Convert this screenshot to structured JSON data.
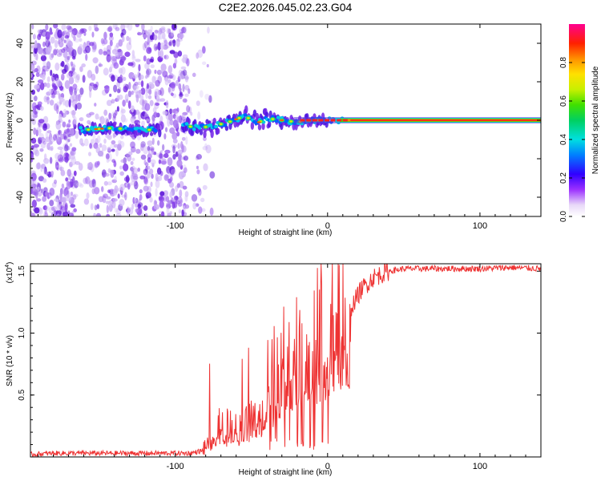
{
  "figure_title": "C2E2.2026.045.02.23.G04",
  "chart_data": [
    {
      "type": "heatmap",
      "title": "C2E2.2026.045.02.23.G04",
      "xlabel": "Height of straight line (km)",
      "ylabel": "Frequency (Hz)",
      "xlim": [
        -195,
        140
      ],
      "ylim": [
        -50,
        50
      ],
      "xticks": [
        -100,
        0,
        100
      ],
      "xtick_labels": [
        "-100",
        "0",
        "100"
      ],
      "yticks": [
        -40,
        -20,
        0,
        20,
        40
      ],
      "ytick_labels": [
        "-40",
        "-20",
        "0",
        "20",
        "40"
      ],
      "ridge": {
        "x": [
          -160,
          -150,
          -140,
          -130,
          -120,
          -110,
          -92,
          -85,
          -75,
          -65,
          -55,
          -45,
          -40,
          -30,
          -20,
          -10,
          0,
          10,
          140
        ],
        "frequency": [
          -5,
          -4.5,
          -4,
          -5,
          -5,
          -5,
          -3,
          -4,
          -3,
          -1,
          2,
          -1,
          1,
          0,
          -1,
          0,
          0,
          0,
          0
        ]
      },
      "colorbar": {
        "label": "Normalized spectral amplitude",
        "range": [
          0,
          1
        ],
        "ticks": [
          0.0,
          0.2,
          0.4,
          0.6,
          0.8
        ],
        "tick_labels": [
          "0.0",
          "0.2",
          "0.4",
          "0.6",
          "0.8"
        ]
      }
    },
    {
      "type": "line",
      "xlabel": "Height of straight line (km)",
      "ylabel": "SNR (10 * v/v)",
      "scale_label": "(x10",
      "scale_exp": "4",
      "xlim": [
        -195,
        140
      ],
      "ylim": [
        0,
        1.56
      ],
      "xticks": [
        -100,
        0,
        100
      ],
      "xtick_labels": [
        "-100",
        "0",
        "100"
      ],
      "yticks": [
        0.5,
        1.0,
        1.5
      ],
      "ytick_labels": [
        "0.5",
        "1.0",
        "1.5"
      ],
      "series": [
        {
          "name": "SNR",
          "color": "#ee3333",
          "x": [
            -195,
            -180,
            -160,
            -140,
            -120,
            -100,
            -90,
            -82,
            -78,
            -72,
            -66,
            -60,
            -52,
            -45,
            -38,
            -30,
            -22,
            -15,
            -8,
            0,
            8,
            15,
            22,
            30,
            40,
            50,
            60,
            80,
            100,
            120,
            140
          ],
          "y": [
            0.02,
            0.03,
            0.03,
            0.03,
            0.03,
            0.03,
            0.03,
            0.05,
            0.2,
            0.3,
            0.35,
            0.3,
            0.35,
            0.4,
            0.55,
            0.7,
            0.8,
            0.95,
            1.05,
            1.1,
            1.15,
            1.2,
            1.35,
            1.45,
            1.5,
            1.52,
            1.52,
            1.52,
            1.52,
            1.53,
            1.52
          ]
        }
      ]
    }
  ]
}
